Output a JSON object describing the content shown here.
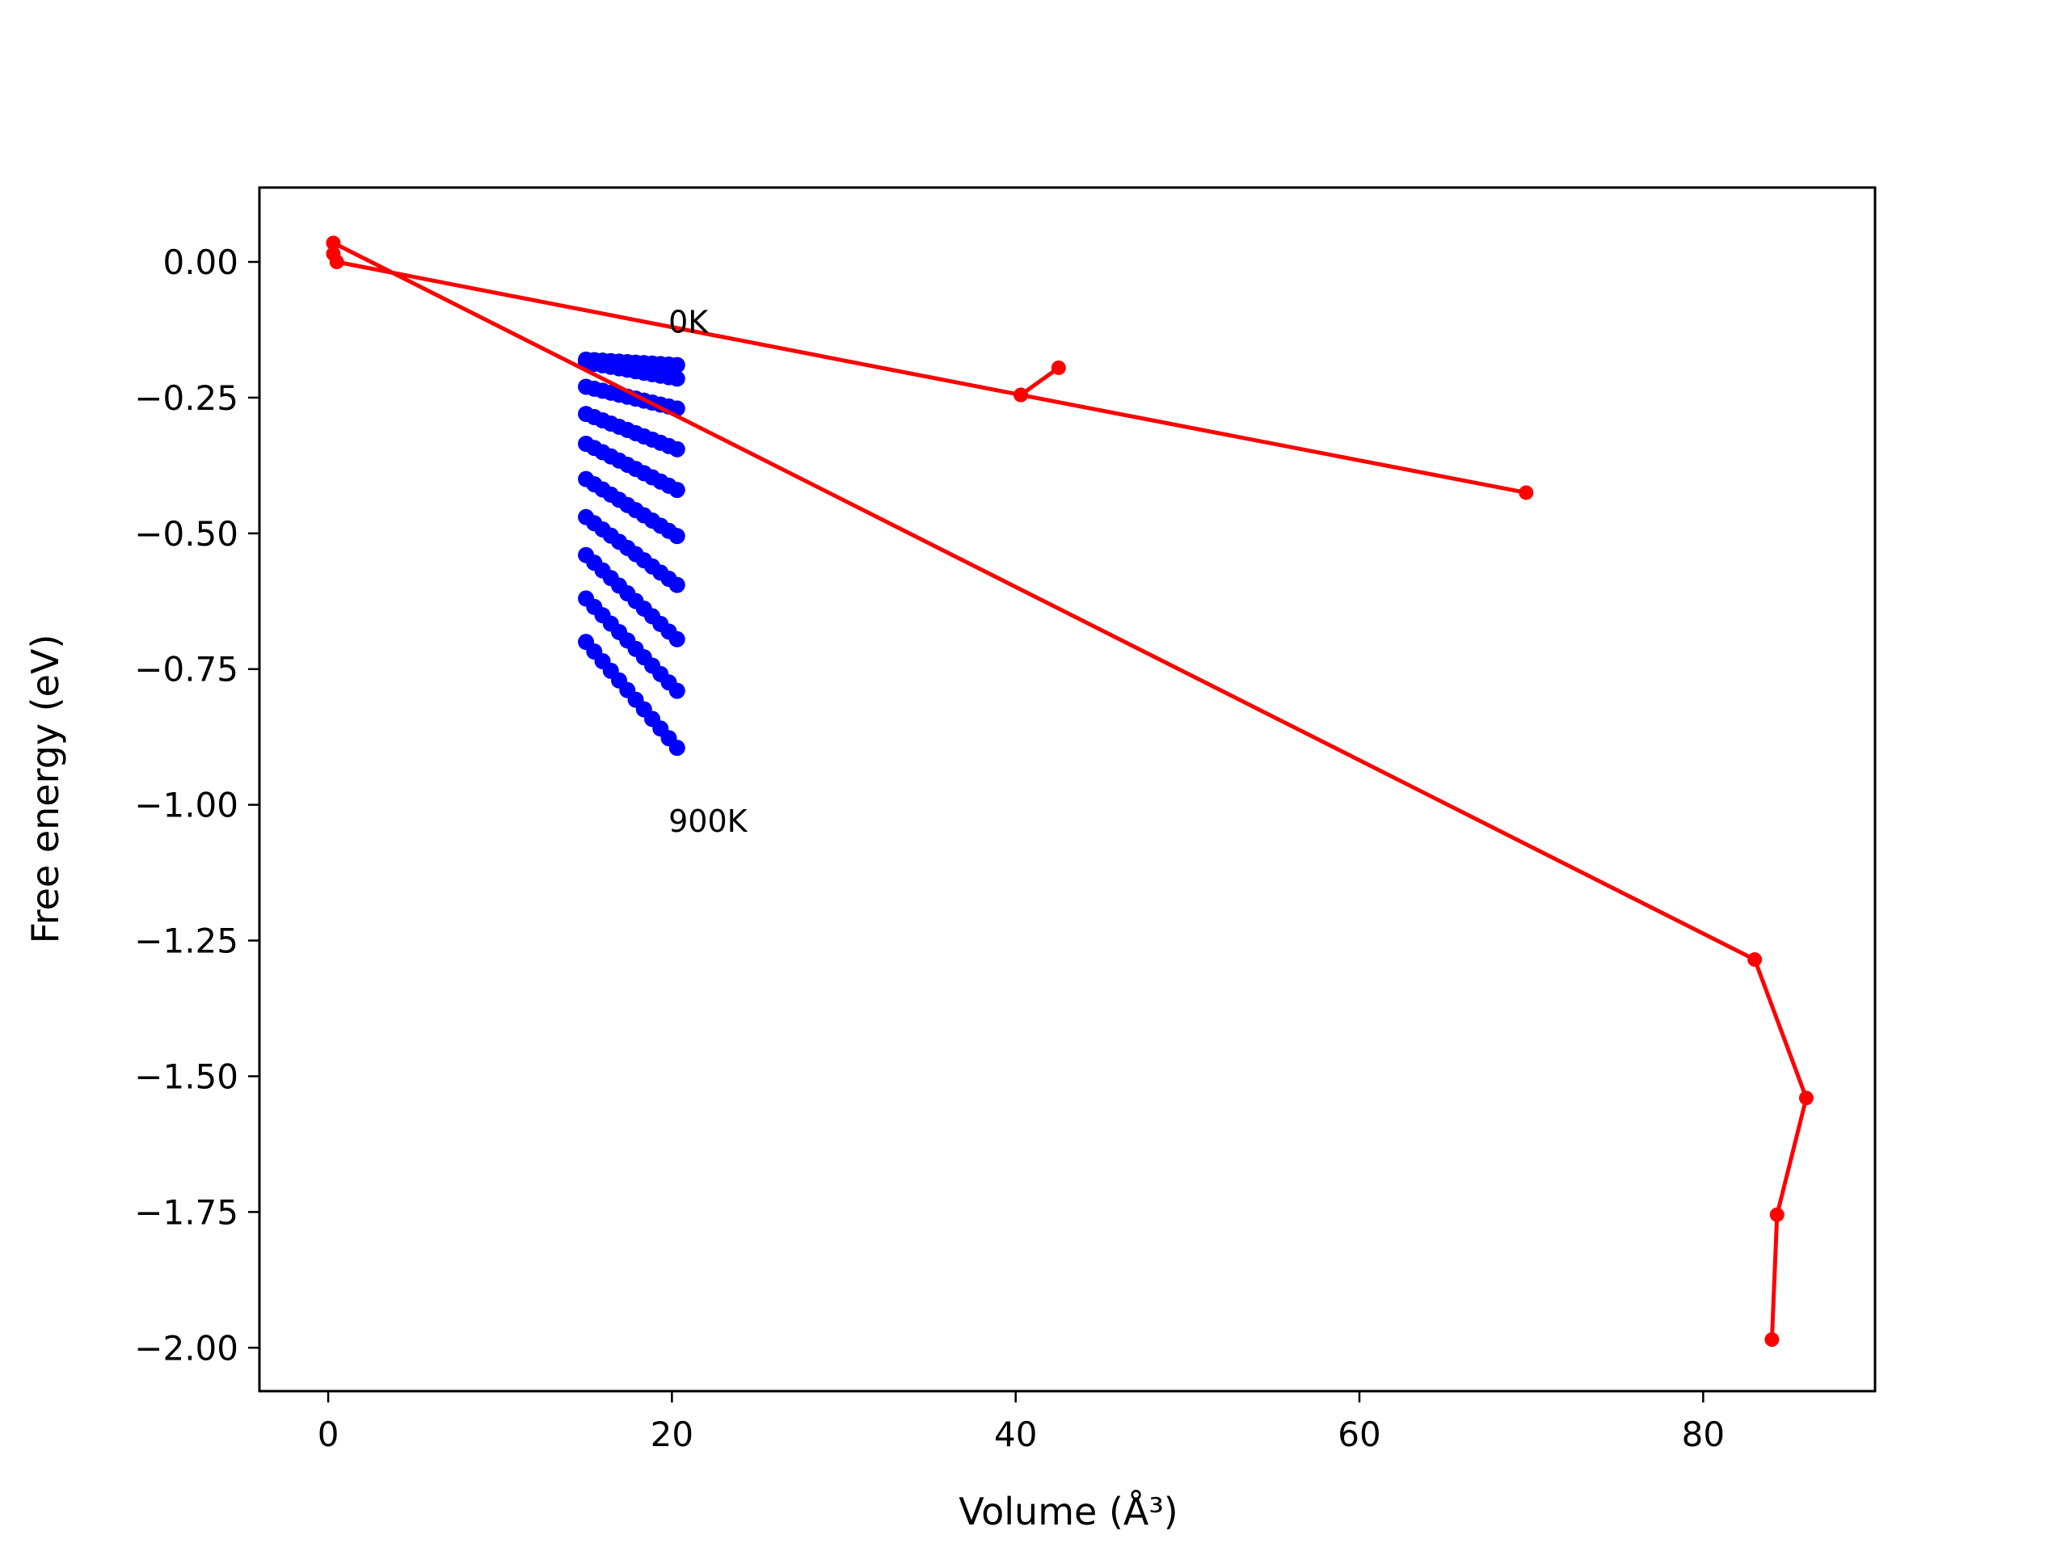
{
  "chart_data": {
    "type": "scatter",
    "title": "",
    "xlabel": "Volume (Å³)",
    "ylabel": "Free energy (eV)",
    "xlim": [
      -4,
      90
    ],
    "ylim": [
      -2.08,
      0.137
    ],
    "x_ticks": [
      0,
      20,
      40,
      60,
      80
    ],
    "x_tick_labels": [
      "0",
      "20",
      "40",
      "60",
      "80"
    ],
    "y_ticks": [
      0.0,
      -0.25,
      -0.5,
      -0.75,
      -1.0,
      -1.25,
      -1.5,
      -1.75,
      -2.0
    ],
    "y_tick_labels": [
      "0.00",
      "−0.25",
      "−0.50",
      "−0.75",
      "−1.00",
      "−1.25",
      "−1.50",
      "−1.75",
      "−2.00"
    ],
    "grid": false,
    "legend": "none",
    "annotations": [
      {
        "text": "0K",
        "x": 19.8,
        "y": -0.13
      },
      {
        "text": "900K",
        "x": 19.8,
        "y": -1.05
      }
    ],
    "red_line": {
      "color": "#ff0000",
      "points": [
        [
          42.5,
          -0.195
        ],
        [
          40.3,
          -0.245
        ],
        [
          69.7,
          -0.425
        ],
        [
          40.3,
          -0.245
        ],
        [
          0.5,
          0.0
        ],
        [
          0.3,
          0.015
        ],
        [
          0.3,
          0.035
        ],
        [
          83.0,
          -1.285
        ],
        [
          86.0,
          -1.54
        ],
        [
          84.3,
          -1.755
        ],
        [
          84.0,
          -1.985
        ]
      ]
    },
    "blue_series": {
      "color": "#0000ff",
      "x_start": 15.0,
      "x_end": 20.3,
      "points_per_curve": 12,
      "curves": [
        {
          "start": -0.18,
          "end": -0.19
        },
        {
          "start": -0.185,
          "end": -0.215
        },
        {
          "start": -0.23,
          "end": -0.27
        },
        {
          "start": -0.28,
          "end": -0.345
        },
        {
          "start": -0.335,
          "end": -0.42
        },
        {
          "start": -0.4,
          "end": -0.505
        },
        {
          "start": -0.47,
          "end": -0.595
        },
        {
          "start": -0.54,
          "end": -0.695
        },
        {
          "start": -0.62,
          "end": -0.79
        },
        {
          "start": -0.7,
          "end": -0.895
        }
      ]
    }
  }
}
